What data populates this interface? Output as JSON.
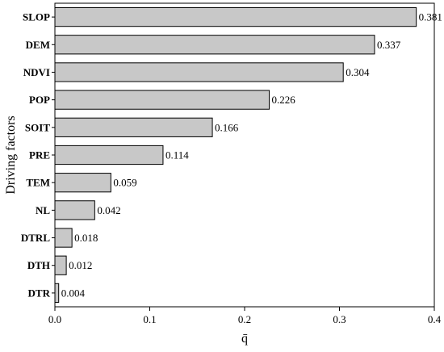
{
  "chart_data": {
    "type": "bar",
    "orientation": "horizontal",
    "categories": [
      "SLOP",
      "DEM",
      "NDVI",
      "POP",
      "SOIT",
      "PRE",
      "TEM",
      "NL",
      "DTRL",
      "DTH",
      "DTR"
    ],
    "values": [
      0.381,
      0.337,
      0.304,
      0.226,
      0.166,
      0.114,
      0.059,
      0.042,
      0.018,
      0.012,
      0.004
    ],
    "value_labels": [
      "0.381",
      "0.337",
      "0.304",
      "0.226",
      "0.166",
      "0.114",
      "0.059",
      "0.042",
      "0.018",
      "0.012",
      "0.004"
    ],
    "xlabel": "q̄",
    "ylabel": "Driving factors",
    "xlim": [
      0,
      0.4
    ],
    "xticks": [
      "0.0",
      "0.1",
      "0.2",
      "0.3",
      "0.4"
    ],
    "grid": false,
    "colors": {
      "bar_fill": "#c8c8c8",
      "bar_stroke": "#000000"
    }
  }
}
